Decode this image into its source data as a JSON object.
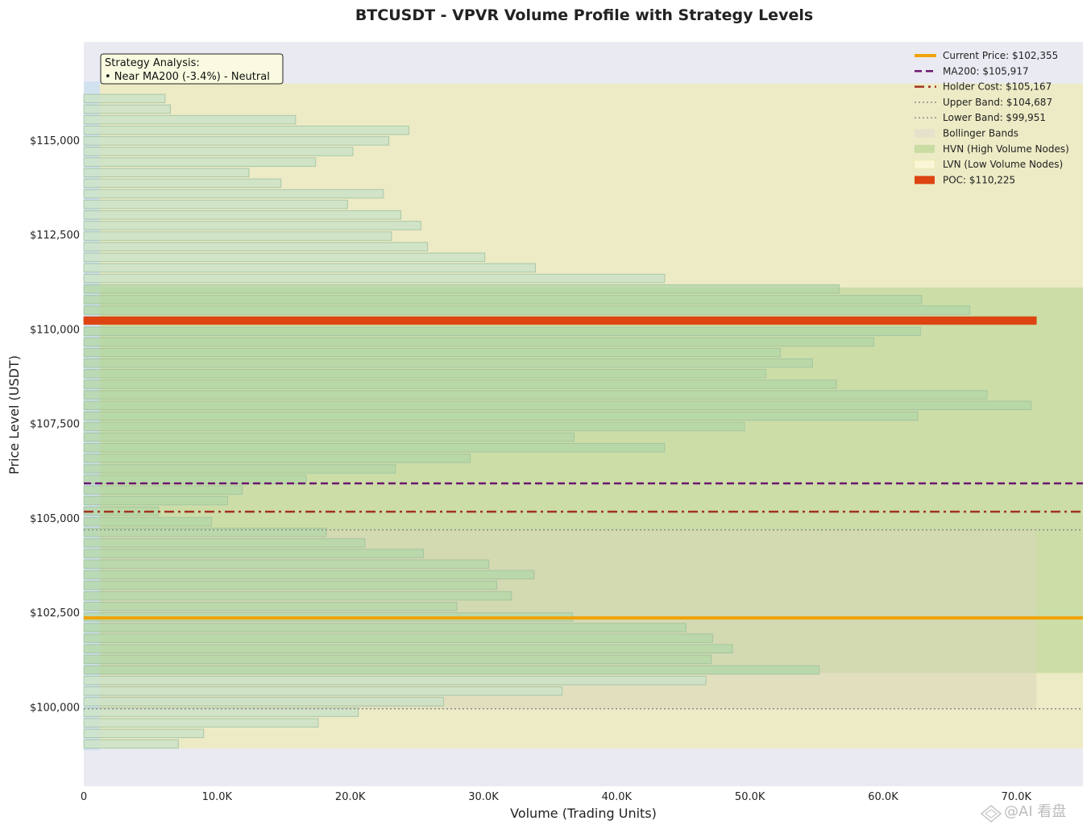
{
  "chart_data": {
    "type": "bar",
    "orientation": "horizontal",
    "title": "BTCUSDT - VPVR Volume Profile with Strategy Levels",
    "xlabel": "Volume (Trading Units)",
    "ylabel": "Price Level (USDT)",
    "xlim": [
      0,
      75000
    ],
    "ylim": [
      97900,
      117600
    ],
    "x_ticks": [
      {
        "v": 0,
        "label": "0"
      },
      {
        "v": 10000,
        "label": "10.0K"
      },
      {
        "v": 20000,
        "label": "20.0K"
      },
      {
        "v": 30000,
        "label": "30.0K"
      },
      {
        "v": 40000,
        "label": "40.0K"
      },
      {
        "v": 50000,
        "label": "50.0K"
      },
      {
        "v": 60000,
        "label": "60.0K"
      },
      {
        "v": 70000,
        "label": "70.0K"
      }
    ],
    "y_ticks": [
      {
        "v": 100000,
        "label": "$100,000"
      },
      {
        "v": 102500,
        "label": "$102,500"
      },
      {
        "v": 105000,
        "label": "$105,000"
      },
      {
        "v": 107500,
        "label": "$107,500"
      },
      {
        "v": 110000,
        "label": "$110,000"
      },
      {
        "v": 112500,
        "label": "$112,500"
      },
      {
        "v": 115000,
        "label": "$115,000"
      }
    ],
    "grid": false,
    "bin_size": 280,
    "bars": [
      {
        "price": 116100,
        "volume": 6100,
        "type": "normal"
      },
      {
        "price": 115820,
        "volume": 6500,
        "type": "normal"
      },
      {
        "price": 115540,
        "volume": 15900,
        "type": "normal"
      },
      {
        "price": 115260,
        "volume": 24400,
        "type": "normal"
      },
      {
        "price": 114980,
        "volume": 22900,
        "type": "normal"
      },
      {
        "price": 114700,
        "volume": 20200,
        "type": "normal"
      },
      {
        "price": 114420,
        "volume": 17400,
        "type": "normal"
      },
      {
        "price": 114140,
        "volume": 12400,
        "type": "normal"
      },
      {
        "price": 113860,
        "volume": 14800,
        "type": "normal"
      },
      {
        "price": 113580,
        "volume": 22500,
        "type": "normal"
      },
      {
        "price": 113300,
        "volume": 19800,
        "type": "normal"
      },
      {
        "price": 113020,
        "volume": 23800,
        "type": "normal"
      },
      {
        "price": 112740,
        "volume": 25300,
        "type": "normal"
      },
      {
        "price": 112460,
        "volume": 23100,
        "type": "normal"
      },
      {
        "price": 112180,
        "volume": 25800,
        "type": "normal"
      },
      {
        "price": 111900,
        "volume": 30100,
        "type": "normal"
      },
      {
        "price": 111620,
        "volume": 33900,
        "type": "normal"
      },
      {
        "price": 111340,
        "volume": 43600,
        "type": "normal"
      },
      {
        "price": 111060,
        "volume": 56700,
        "type": "hvn"
      },
      {
        "price": 110780,
        "volume": 62900,
        "type": "hvn"
      },
      {
        "price": 110500,
        "volume": 66500,
        "type": "hvn"
      },
      {
        "price": 110225,
        "volume": 71500,
        "type": "poc"
      },
      {
        "price": 109940,
        "volume": 62800,
        "type": "hvn"
      },
      {
        "price": 109660,
        "volume": 59300,
        "type": "hvn"
      },
      {
        "price": 109380,
        "volume": 52300,
        "type": "hvn"
      },
      {
        "price": 109100,
        "volume": 54700,
        "type": "hvn"
      },
      {
        "price": 108820,
        "volume": 51200,
        "type": "hvn"
      },
      {
        "price": 108540,
        "volume": 56500,
        "type": "hvn"
      },
      {
        "price": 108260,
        "volume": 67800,
        "type": "hvn"
      },
      {
        "price": 107980,
        "volume": 71100,
        "type": "hvn"
      },
      {
        "price": 107700,
        "volume": 62600,
        "type": "hvn"
      },
      {
        "price": 107420,
        "volume": 49600,
        "type": "hvn"
      },
      {
        "price": 107140,
        "volume": 36800,
        "type": "hvn"
      },
      {
        "price": 106860,
        "volume": 43600,
        "type": "hvn"
      },
      {
        "price": 106580,
        "volume": 29000,
        "type": "hvn"
      },
      {
        "price": 106300,
        "volume": 23400,
        "type": "hvn"
      },
      {
        "price": 106020,
        "volume": 16700,
        "type": "hvn"
      },
      {
        "price": 105740,
        "volume": 11900,
        "type": "hvn"
      },
      {
        "price": 105460,
        "volume": 10800,
        "type": "hvn"
      },
      {
        "price": 105180,
        "volume": 5600,
        "type": "hvn"
      },
      {
        "price": 104900,
        "volume": 9600,
        "type": "hvn"
      },
      {
        "price": 104620,
        "volume": 18200,
        "type": "hvn"
      },
      {
        "price": 104340,
        "volume": 21100,
        "type": "hvn"
      },
      {
        "price": 104060,
        "volume": 25500,
        "type": "hvn"
      },
      {
        "price": 103780,
        "volume": 30400,
        "type": "hvn"
      },
      {
        "price": 103500,
        "volume": 33800,
        "type": "hvn"
      },
      {
        "price": 103220,
        "volume": 31000,
        "type": "hvn"
      },
      {
        "price": 102940,
        "volume": 32100,
        "type": "hvn"
      },
      {
        "price": 102660,
        "volume": 28000,
        "type": "hvn"
      },
      {
        "price": 102380,
        "volume": 36700,
        "type": "hvn"
      },
      {
        "price": 102100,
        "volume": 45200,
        "type": "hvn"
      },
      {
        "price": 101820,
        "volume": 47200,
        "type": "hvn"
      },
      {
        "price": 101540,
        "volume": 48700,
        "type": "hvn"
      },
      {
        "price": 101260,
        "volume": 47100,
        "type": "hvn"
      },
      {
        "price": 100980,
        "volume": 55200,
        "type": "hvn"
      },
      {
        "price": 100700,
        "volume": 46700,
        "type": "normal"
      },
      {
        "price": 100420,
        "volume": 35900,
        "type": "normal"
      },
      {
        "price": 100140,
        "volume": 27000,
        "type": "normal"
      },
      {
        "price": 99860,
        "volume": 20600,
        "type": "normal"
      },
      {
        "price": 99580,
        "volume": 17600,
        "type": "normal"
      },
      {
        "price": 99300,
        "volume": 9000,
        "type": "normal"
      },
      {
        "price": 99020,
        "volume": 7100,
        "type": "normal"
      }
    ],
    "bands": [
      {
        "name": "Bollinger Bands",
        "y0": 98900,
        "y1": 116500,
        "x0": 0,
        "x1": 75000,
        "color": "#ecebc0"
      },
      {
        "name": "HVN (High Volume Nodes)",
        "y0": 100900,
        "y1": 111100,
        "x0": 0,
        "x1": 75000,
        "color": "#c9dca3"
      },
      {
        "name": "Bollinger Bands",
        "y0": 99951,
        "y1": 104687,
        "x0": 0,
        "x1": 71500,
        "color": "#d8d5b8"
      },
      {
        "name": "profile-range",
        "y0": 98850,
        "y1": 116550,
        "x0": 0,
        "x1": 1200,
        "color": "#cfe0f2"
      }
    ],
    "levels": [
      {
        "name": "Current Price",
        "value": 102355,
        "label": "Current Price: $102,355",
        "color": "#f0a30a",
        "style": "solid",
        "width": 4
      },
      {
        "name": "MA200",
        "value": 105917,
        "label": "MA200: $105,917",
        "color": "#6b1670",
        "style": "dashed",
        "width": 2.5
      },
      {
        "name": "Holder Cost",
        "value": 105167,
        "label": "Holder Cost: $105,167",
        "color": "#a23322",
        "style": "dashdot",
        "width": 2.5
      },
      {
        "name": "Upper Band",
        "value": 104687,
        "label": "Upper Band: $104,687",
        "color": "#8c8c8c",
        "style": "dotted",
        "width": 1.5
      },
      {
        "name": "Lower Band",
        "value": 99951,
        "label": "Lower Band: $99,951",
        "color": "#8c8c8c",
        "style": "dotted",
        "width": 1.5
      }
    ],
    "legend": {
      "position": "top-right",
      "entries": [
        {
          "label": "Current Price: $102,355",
          "kind": "line",
          "color": "#f0a30a",
          "style": "solid"
        },
        {
          "label": "MA200: $105,917",
          "kind": "line",
          "color": "#6b1670",
          "style": "dashed"
        },
        {
          "label": "Holder Cost: $105,167",
          "kind": "line",
          "color": "#a23322",
          "style": "dashdot"
        },
        {
          "label": "Upper Band: $104,687",
          "kind": "line",
          "color": "#8c8c8c",
          "style": "dotted"
        },
        {
          "label": "Lower Band: $99,951",
          "kind": "line",
          "color": "#8c8c8c",
          "style": "dotted"
        },
        {
          "label": "Bollinger Bands",
          "kind": "patch",
          "color": "#e4e2cc"
        },
        {
          "label": "HVN (High Volume Nodes)",
          "kind": "patch",
          "color": "#c9dca3"
        },
        {
          "label": "LVN (Low Volume Nodes)",
          "kind": "hatch",
          "color": "#f2e38a"
        },
        {
          "label": "POC: $110,225",
          "kind": "patch",
          "color": "#dd4411"
        }
      ]
    },
    "annotation": {
      "lines": [
        "Strategy Analysis:",
        "• Near MA200 (-3.4%) - Neutral"
      ],
      "position": "top-left"
    },
    "colors": {
      "plot_bg": "#eaeaf2",
      "bar_normal": "#cde3c7",
      "bar_hvn": "#b4d7a8",
      "bar_edge": "#9dbfa0",
      "poc": "#dd4411"
    }
  },
  "watermark": "@AI 看盘"
}
